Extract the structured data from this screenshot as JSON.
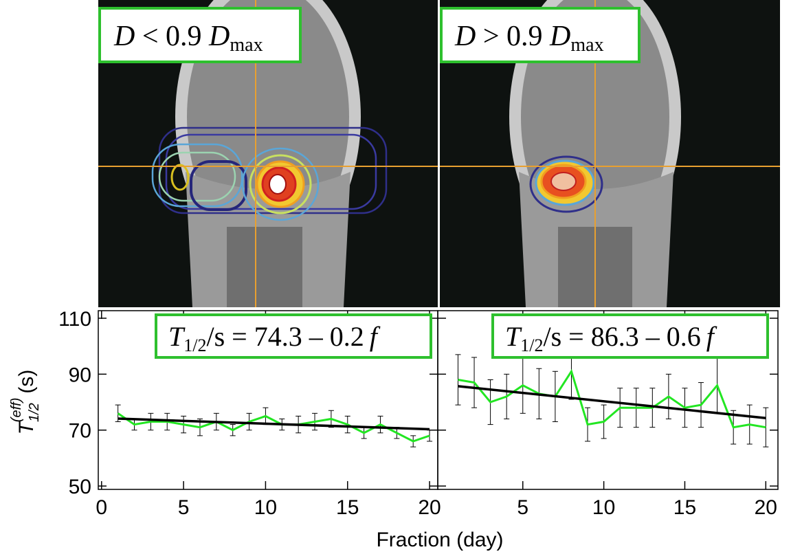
{
  "panels": [
    {
      "label": {
        "var": "D",
        "op": "< 0.9",
        "var2": "D",
        "sub": "max"
      }
    },
    {
      "label": {
        "var": "D",
        "op": "> 0.9",
        "var2": "D",
        "sub": "max"
      }
    }
  ],
  "chart_data": [
    {
      "type": "line",
      "xlabel": "Fraction (day)",
      "ylabel": {
        "var": "T",
        "sub": "1/2",
        "sup": "(eff)",
        "unit": "(s)"
      },
      "annotation": {
        "var": "T",
        "sub": "1/2",
        "text": "/s = 74.3 – 0.2",
        "var2": "f"
      },
      "x": [
        1,
        2,
        3,
        4,
        5,
        6,
        7,
        8,
        9,
        10,
        11,
        12,
        13,
        14,
        15,
        16,
        17,
        18,
        19,
        20
      ],
      "series": [
        {
          "color": "#22e622",
          "values": [
            76,
            72,
            73,
            73,
            72,
            71,
            73,
            70,
            73,
            75,
            72,
            72,
            73,
            74,
            72,
            69,
            72,
            69,
            66,
            68
          ],
          "errors": [
            3,
            2,
            3,
            3,
            3,
            3,
            3,
            2,
            3,
            3,
            2,
            3,
            3,
            3,
            3,
            2,
            3,
            2,
            2,
            2
          ]
        }
      ],
      "fit": {
        "color": "#000000",
        "x": [
          1,
          20
        ],
        "values": [
          74.1,
          70.3
        ]
      },
      "xlim": [
        -0.2,
        20.5
      ],
      "xticks": [
        0,
        5,
        10,
        15,
        20
      ],
      "ylim": [
        48.8,
        112.7
      ],
      "yticks": [
        50,
        70,
        90,
        110
      ],
      "ytick_labels": true
    },
    {
      "type": "line",
      "annotation": {
        "var": "T",
        "sub": "1/2",
        "text": "/s = 86.3 – 0.6",
        "var2": "f"
      },
      "x": [
        1,
        2,
        3,
        4,
        5,
        6,
        7,
        8,
        9,
        10,
        11,
        12,
        13,
        14,
        15,
        16,
        17,
        18,
        19,
        20
      ],
      "series": [
        {
          "color": "#22e622",
          "values": [
            88,
            87,
            80,
            82,
            86,
            83,
            82,
            91,
            72,
            73,
            78,
            78,
            78,
            82,
            78,
            79,
            86,
            71,
            72,
            71
          ],
          "errors": [
            9,
            9,
            8,
            8,
            10,
            9,
            9,
            10,
            6,
            6,
            7,
            7,
            7,
            8,
            7,
            8,
            10,
            6,
            7,
            7
          ]
        }
      ],
      "fit": {
        "color": "#000000",
        "x": [
          1,
          20
        ],
        "values": [
          85.7,
          74.3
        ]
      },
      "xlim": [
        -0.25,
        20.75
      ],
      "xticks": [
        5,
        10,
        15,
        20
      ],
      "ylim": [
        48.8,
        112.7
      ],
      "yticks": [
        50,
        70,
        90,
        110
      ],
      "ytick_labels": false
    }
  ]
}
